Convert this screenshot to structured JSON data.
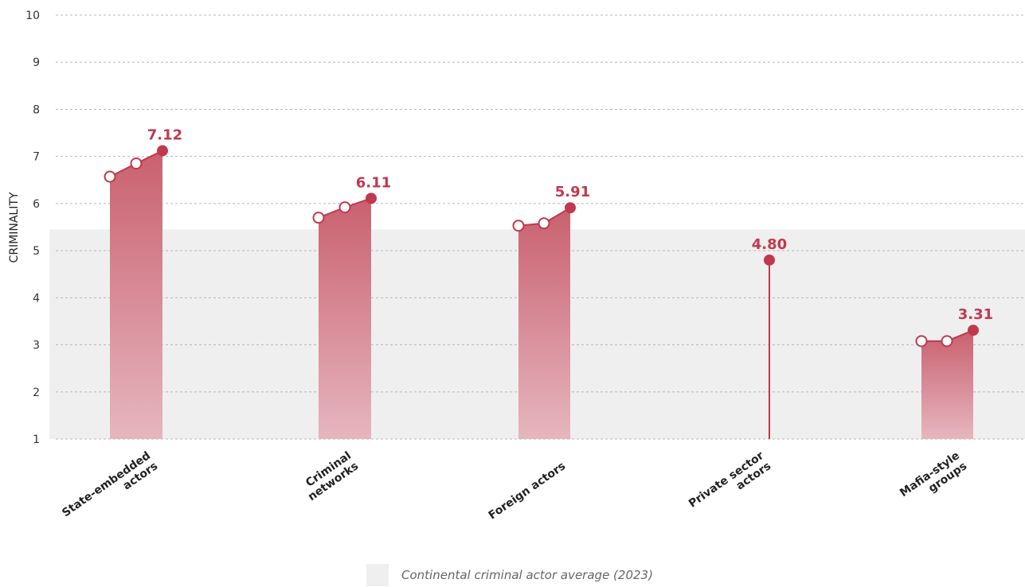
{
  "chart_data": {
    "type": "line",
    "ylabel": "CRIMINALITY",
    "ylim": [
      1,
      10
    ],
    "yticks": [
      "1",
      "2",
      "3",
      "4",
      "5",
      "6",
      "7",
      "8",
      "9",
      "10"
    ],
    "grid": true,
    "average_band": {
      "label": "Continental criminal actor average (2023)",
      "from": 1,
      "to": 5.45
    },
    "categories": [
      {
        "label_lines": [
          "State-embedded",
          "actors"
        ],
        "series": [
          6.57,
          6.85,
          7.12
        ],
        "value_label": "7.12"
      },
      {
        "label_lines": [
          "Criminal",
          "networks"
        ],
        "series": [
          5.7,
          5.92,
          6.11
        ],
        "value_label": "6.11"
      },
      {
        "label_lines": [
          "Foreign actors"
        ],
        "series": [
          5.53,
          5.58,
          5.91
        ],
        "value_label": "5.91"
      },
      {
        "label_lines": [
          "Private sector",
          "actors"
        ],
        "series": [
          4.8
        ],
        "value_label": "4.80"
      },
      {
        "label_lines": [
          "Mafia-style",
          "groups"
        ],
        "series": [
          3.08,
          3.08,
          3.31
        ],
        "value_label": "3.31"
      }
    ],
    "colors": {
      "accent": "#c0394f",
      "band": "#efefef",
      "grid": "#b8b8b8",
      "fill_top": "#c9606f",
      "fill_bottom": "#e6b6bf"
    }
  },
  "legend": {
    "label": "Continental criminal actor average (2023)"
  }
}
